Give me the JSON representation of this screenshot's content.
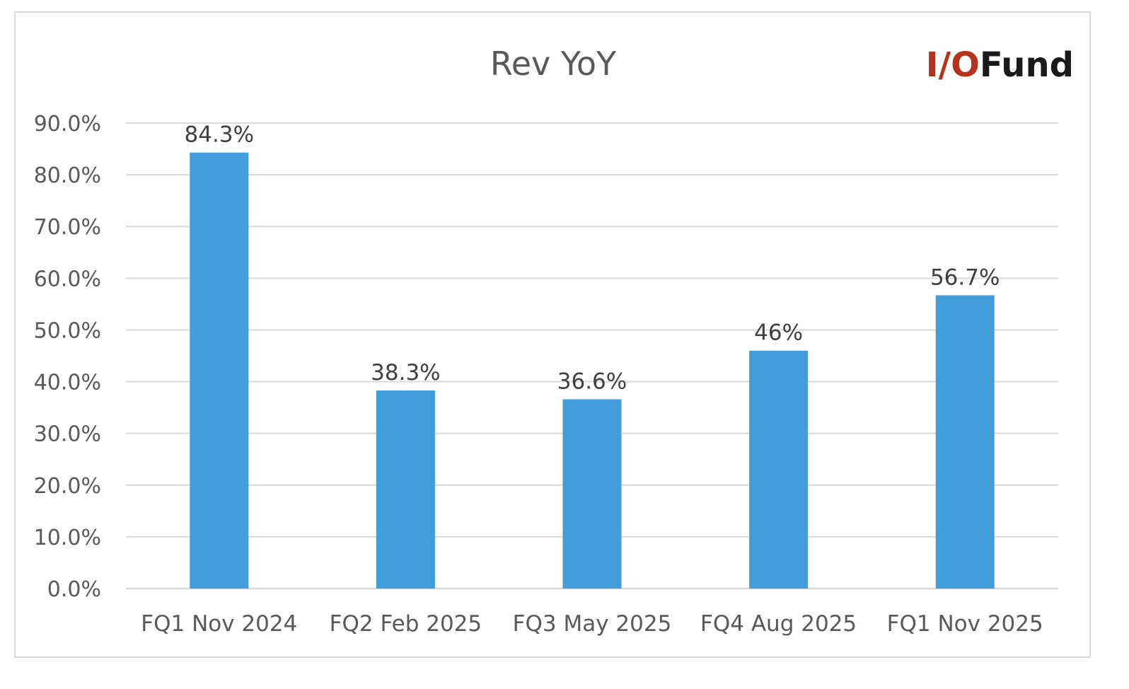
{
  "logo": {
    "prefix": "I/O",
    "suffix": "Fund",
    "prefix_color": "#b5321b",
    "suffix_color": "#1a1a1a"
  },
  "colors": {
    "bar": "#439ddb",
    "grid": "#d9d9d9",
    "text": "#595959"
  },
  "chart_data": {
    "type": "bar",
    "title": "Rev YoY",
    "xlabel": "",
    "ylabel": "",
    "categories": [
      "FQ1 Nov 2024",
      "FQ2 Feb 2025",
      "FQ3 May 2025",
      "FQ4 Aug 2025",
      "FQ1 Nov 2025"
    ],
    "values": [
      84.3,
      38.3,
      36.6,
      46,
      56.7
    ],
    "data_labels": [
      "84.3%",
      "38.3%",
      "36.6%",
      "46%",
      "56.7%"
    ],
    "ylim": [
      0,
      90
    ],
    "yticks": [
      0,
      10,
      20,
      30,
      40,
      50,
      60,
      70,
      80,
      90
    ],
    "ytick_labels": [
      "0.0%",
      "10.0%",
      "20.0%",
      "30.0%",
      "40.0%",
      "50.0%",
      "60.0%",
      "70.0%",
      "80.0%",
      "90.0%"
    ],
    "grid": true,
    "legend": "none"
  }
}
